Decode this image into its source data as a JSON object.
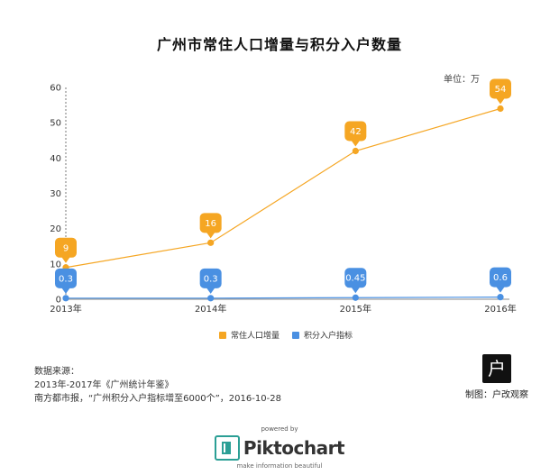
{
  "title": "广州市常住人口增量与积分入户数量",
  "unit_label": "单位：万",
  "chart_data": {
    "type": "line",
    "title": "广州市常住人口增量与积分入户数量",
    "categories": [
      "2013年",
      "2014年",
      "2015年",
      "2016年"
    ],
    "ylim": [
      0,
      60
    ],
    "yticks": [
      0,
      10,
      20,
      30,
      40,
      50,
      60
    ],
    "grid": false,
    "legend": "bottom",
    "series": [
      {
        "name": "常住人口增量",
        "color": "#f5a623",
        "values": [
          9,
          16,
          42,
          54
        ],
        "labels": [
          "9",
          "16",
          "42",
          "54"
        ]
      },
      {
        "name": "积分入户指标",
        "color": "#4a90e2",
        "values": [
          0.3,
          0.3,
          0.45,
          0.6
        ],
        "labels": [
          "0.3",
          "0.3",
          "0.45",
          "0.6"
        ]
      }
    ]
  },
  "legend": {
    "items": [
      {
        "label": "常住人口增量",
        "color": "#f5a623"
      },
      {
        "label": "积分入户指标",
        "color": "#4a90e2"
      }
    ]
  },
  "source": {
    "heading": "数据来源：",
    "line1": "2013年-2017年《广州统计年鉴》",
    "line2": "南方都市报，“广州积分入户指标增至6000个”，2016-10-28"
  },
  "credit": {
    "logo_text": "户",
    "text": "制图：户改观察"
  },
  "footer": {
    "powered_by": "powered by",
    "brand": "Piktochart",
    "tagline": "make information beautiful"
  }
}
